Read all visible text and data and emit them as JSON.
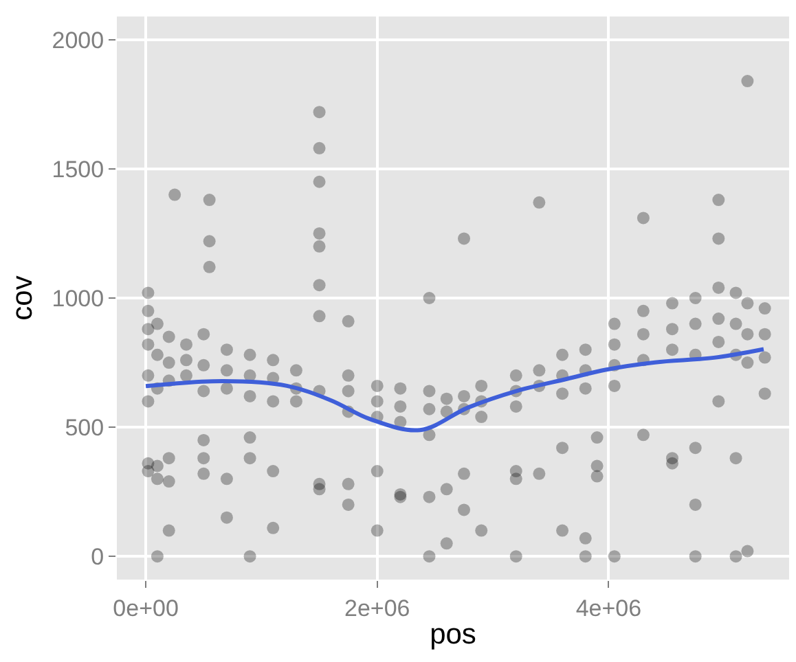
{
  "chart_data": {
    "type": "scatter",
    "xlabel": "pos",
    "ylabel": "cov",
    "xlim": [
      -250000,
      5560000
    ],
    "ylim": [
      -90,
      2090
    ],
    "xticks": [
      {
        "value": 0,
        "label": "0e+00"
      },
      {
        "value": 2000000,
        "label": "2e+06"
      },
      {
        "value": 4000000,
        "label": "4e+06"
      }
    ],
    "yticks": [
      0,
      500,
      1000,
      1500,
      2000
    ],
    "grid": true,
    "series": [
      {
        "marker": "circle",
        "color": "#000000",
        "x": [
          20000,
          20000,
          20000,
          20000,
          20000,
          20000,
          20000,
          20000,
          100000,
          100000,
          100000,
          100000,
          100000,
          100000,
          200000,
          200000,
          200000,
          200000,
          200000,
          200000,
          250000,
          350000,
          350000,
          350000,
          500000,
          500000,
          500000,
          500000,
          500000,
          500000,
          550000,
          550000,
          550000,
          700000,
          700000,
          700000,
          700000,
          700000,
          900000,
          900000,
          900000,
          900000,
          900000,
          900000,
          1100000,
          1100000,
          1100000,
          1100000,
          1100000,
          1300000,
          1300000,
          1300000,
          1500000,
          1500000,
          1500000,
          1500000,
          1500000,
          1500000,
          1500000,
          1500000,
          1500000,
          1500000,
          1750000,
          1750000,
          1750000,
          1750000,
          1750000,
          1750000,
          2000000,
          2000000,
          2000000,
          2000000,
          2000000,
          2200000,
          2200000,
          2200000,
          2200000,
          2200000,
          2450000,
          2450000,
          2450000,
          2450000,
          2450000,
          2450000,
          2600000,
          2600000,
          2600000,
          2600000,
          2750000,
          2750000,
          2750000,
          2750000,
          2750000,
          2900000,
          2900000,
          2900000,
          2900000,
          3200000,
          3200000,
          3200000,
          3200000,
          3200000,
          3200000,
          3400000,
          3400000,
          3400000,
          3400000,
          3600000,
          3600000,
          3600000,
          3600000,
          3600000,
          3800000,
          3800000,
          3800000,
          3800000,
          3800000,
          3900000,
          3900000,
          3900000,
          4050000,
          4050000,
          4050000,
          4050000,
          4050000,
          4300000,
          4300000,
          4300000,
          4300000,
          4300000,
          4550000,
          4550000,
          4550000,
          4550000,
          4550000,
          4750000,
          4750000,
          4750000,
          4750000,
          4750000,
          4750000,
          4950000,
          4950000,
          4950000,
          4950000,
          4950000,
          4950000,
          5100000,
          5100000,
          5100000,
          5100000,
          5100000,
          5200000,
          5200000,
          5200000,
          5200000,
          5200000,
          5350000,
          5350000,
          5350000,
          5350000
        ],
        "values": [
          880,
          820,
          950,
          700,
          360,
          330,
          1020,
          600,
          900,
          780,
          650,
          350,
          300,
          0,
          850,
          750,
          680,
          380,
          290,
          100,
          1400,
          820,
          760,
          700,
          860,
          740,
          640,
          320,
          380,
          450,
          1380,
          1220,
          1120,
          800,
          720,
          650,
          300,
          150,
          780,
          700,
          620,
          460,
          380,
          0,
          760,
          690,
          600,
          330,
          110,
          720,
          650,
          600,
          1720,
          1580,
          1450,
          1250,
          1200,
          1050,
          930,
          280,
          260,
          640,
          910,
          700,
          640,
          560,
          280,
          200,
          660,
          600,
          540,
          330,
          100,
          650,
          580,
          520,
          240,
          230,
          640,
          570,
          470,
          230,
          1000,
          0,
          610,
          560,
          260,
          50,
          620,
          570,
          180,
          320,
          1230,
          660,
          600,
          540,
          100,
          700,
          640,
          580,
          330,
          300,
          0,
          720,
          660,
          1370,
          320,
          780,
          700,
          630,
          420,
          100,
          800,
          720,
          650,
          0,
          70,
          350,
          310,
          460,
          900,
          820,
          740,
          660,
          0,
          950,
          860,
          760,
          1310,
          470,
          980,
          880,
          800,
          380,
          360,
          1000,
          900,
          780,
          420,
          200,
          0,
          1040,
          920,
          830,
          1380,
          1230,
          600,
          1020,
          900,
          780,
          380,
          0,
          1840,
          980,
          860,
          750,
          20,
          960,
          860,
          770,
          630
        ]
      },
      {
        "type": "line",
        "color": "#3f5fd9",
        "x": [
          0,
          670000,
          1220000,
          1600000,
          1940000,
          2370000,
          2790000,
          3210000,
          3640000,
          3980000,
          4400000,
          4910000,
          5340000
        ],
        "values": [
          659,
          678,
          660,
          604,
          531,
          489,
          577,
          641,
          687,
          723,
          751,
          769,
          802
        ]
      }
    ]
  }
}
